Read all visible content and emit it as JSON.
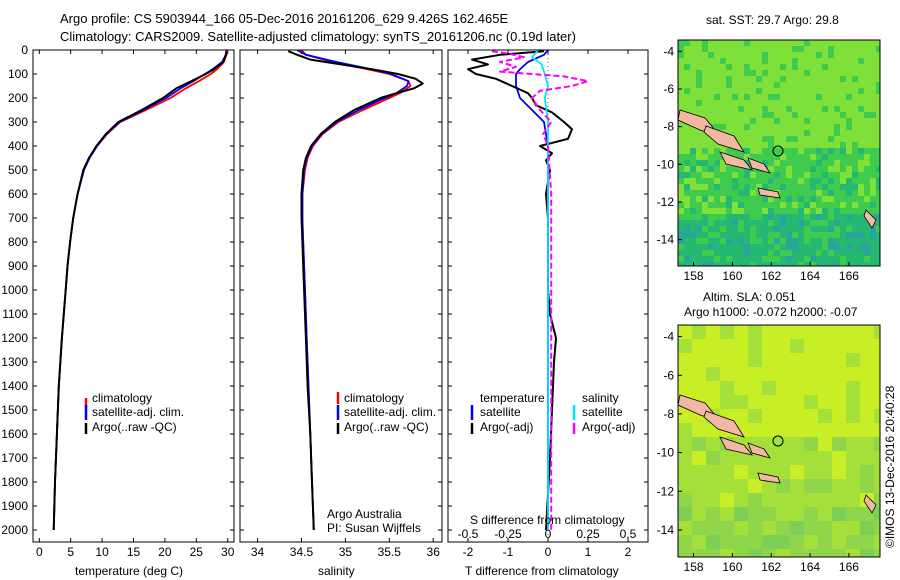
{
  "header": {
    "line1": "Argo profile: CS 5903944_166 05-Dec-2016 20161206_629 9.426S 162.465E",
    "line2": "Climatology: CARS2009. Satellite-adjusted climatology: synTS_20161206.nc (0.19d later)"
  },
  "depth_ticks": [
    0,
    100,
    200,
    300,
    400,
    500,
    600,
    700,
    800,
    900,
    1000,
    1100,
    1200,
    1300,
    1400,
    1500,
    1600,
    1700,
    1800,
    1900,
    2000
  ],
  "temp_panel": {
    "xlabel": "temperature (deg C)",
    "xticks": [
      0,
      5,
      10,
      15,
      20,
      25,
      30
    ],
    "legend": [
      "climatology",
      "satellite-adj. clim.",
      "Argo(..raw -QC)"
    ]
  },
  "sal_panel": {
    "xlabel": "salinity",
    "xticks": [
      "34",
      "34.5",
      "35",
      "35.5",
      "36"
    ],
    "legend": [
      "climatology",
      "satellite-adj. clim.",
      "Argo(..raw -QC)"
    ],
    "note1": "Argo Australia",
    "note2": "PI: Susan Wijffels"
  },
  "diff_panel": {
    "xlabel": "T difference from climatology",
    "top_label": "S difference from climatology",
    "t_ticks": [
      "-2",
      "-1",
      "0",
      "1",
      "2"
    ],
    "s_ticks": [
      "-0.5",
      "-0.25",
      "0",
      "0.25",
      "0.5"
    ],
    "legend_temp_title": "temperature",
    "legend_sal_title": "salinity",
    "legend_temp": [
      "satellite",
      "Argo(-adj)"
    ],
    "legend_sal": [
      "satellite",
      "Argo(-adj)"
    ]
  },
  "map_sst": {
    "title": "sat. SST: 29.7  Argo: 29.8",
    "yticks": [
      "-4",
      "-6",
      "-8",
      "-10",
      "-12",
      "-14"
    ],
    "xticks": [
      "158",
      "160",
      "162",
      "164",
      "166"
    ]
  },
  "map_sla": {
    "title1": "Altim. SLA: 0.051",
    "title2": "Argo h1000: -0.072 h2000: -0.07",
    "yticks": [
      "-4",
      "-6",
      "-8",
      "-10",
      "-12",
      "-14"
    ],
    "xticks": [
      "158",
      "160",
      "162",
      "164",
      "166"
    ]
  },
  "watermark": "©IMOS 13-Dec-2016 20:40:28",
  "colors": {
    "climatology": "#ff0000",
    "satellite": "#0000ff",
    "argo": "#000000",
    "sal_satellite": "#00e5ff",
    "sal_argo": "#ff00ff"
  },
  "chart_data": [
    {
      "type": "line",
      "xlabel": "temperature (deg C)",
      "ylabel": "",
      "xlim": [
        -1,
        31
      ],
      "ylim": [
        2050,
        0
      ],
      "series": [
        {
          "name": "climatology",
          "depth": [
            0,
            20,
            50,
            80,
            100,
            130,
            160,
            200,
            250,
            300,
            350,
            400,
            450,
            500,
            600,
            700,
            800,
            900,
            1000,
            1200,
            1400,
            1600,
            1800,
            2000
          ],
          "values": [
            29.9,
            29.8,
            29.4,
            28.3,
            27.3,
            25.4,
            23.3,
            20.9,
            17.0,
            12.9,
            10.8,
            9.2,
            8.0,
            7.1,
            6.1,
            5.4,
            4.9,
            4.5,
            4.2,
            3.6,
            3.1,
            2.8,
            2.5,
            2.3
          ]
        },
        {
          "name": "satellite-adj. clim.",
          "depth": [
            0,
            20,
            50,
            80,
            100,
            130,
            160,
            200,
            250,
            300,
            350,
            400,
            450,
            500,
            600,
            700,
            800,
            900,
            1000,
            1200,
            1400,
            1600,
            1800,
            2000
          ],
          "values": [
            29.8,
            29.7,
            29.1,
            27.6,
            26.4,
            24.5,
            22.5,
            20.2,
            16.6,
            12.8,
            10.7,
            9.2,
            8.0,
            7.1,
            6.1,
            5.4,
            4.9,
            4.5,
            4.2,
            3.6,
            3.1,
            2.8,
            2.5,
            2.3
          ]
        },
        {
          "name": "Argo(..raw -QC)",
          "depth": [
            5,
            20,
            50,
            80,
            100,
            130,
            160,
            200,
            250,
            300,
            350,
            400,
            450,
            500,
            600,
            700,
            800,
            900,
            1000,
            1200,
            1400,
            1600,
            1800,
            2000
          ],
          "values": [
            29.8,
            29.7,
            29.3,
            27.8,
            26.5,
            24.2,
            21.8,
            19.7,
            16.3,
            12.6,
            10.6,
            9.1,
            7.9,
            7.0,
            6.1,
            5.4,
            4.9,
            4.5,
            4.2,
            3.6,
            3.1,
            2.8,
            2.5,
            2.3
          ]
        }
      ]
    },
    {
      "type": "line",
      "xlabel": "salinity",
      "ylabel": "",
      "xlim": [
        33.8,
        36.1
      ],
      "ylim": [
        2050,
        0
      ],
      "series": [
        {
          "name": "climatology",
          "depth": [
            0,
            20,
            50,
            80,
            100,
            130,
            150,
            180,
            200,
            250,
            300,
            350,
            400,
            450,
            500,
            600,
            700,
            800,
            900,
            1000,
            1200,
            1400,
            1600,
            1800,
            2000
          ],
          "values": [
            34.5,
            34.55,
            34.85,
            35.25,
            35.5,
            35.72,
            35.74,
            35.62,
            35.5,
            35.2,
            34.92,
            34.74,
            34.63,
            34.57,
            34.54,
            34.51,
            34.51,
            34.52,
            34.53,
            34.54,
            34.56,
            34.58,
            34.6,
            34.62,
            34.64
          ]
        },
        {
          "name": "satellite-adj. clim.",
          "depth": [
            0,
            20,
            50,
            80,
            100,
            130,
            150,
            180,
            200,
            250,
            300,
            350,
            400,
            450,
            500,
            600,
            700,
            800,
            900,
            1000,
            1200,
            1400,
            1600,
            1800,
            2000
          ],
          "values": [
            34.45,
            34.55,
            34.9,
            35.3,
            35.52,
            35.72,
            35.7,
            35.58,
            35.45,
            35.15,
            34.9,
            34.73,
            34.62,
            34.56,
            34.53,
            34.51,
            34.51,
            34.52,
            34.53,
            34.54,
            34.56,
            34.58,
            34.6,
            34.62,
            34.64
          ]
        },
        {
          "name": "Argo(..raw -QC)",
          "depth": [
            5,
            20,
            40,
            60,
            80,
            100,
            120,
            140,
            160,
            180,
            200,
            250,
            300,
            350,
            400,
            450,
            500,
            600,
            700,
            800,
            900,
            1000,
            1200,
            1400,
            1600,
            1800,
            2000
          ],
          "values": [
            34.35,
            34.45,
            34.6,
            34.95,
            35.3,
            35.6,
            35.8,
            35.88,
            35.78,
            35.58,
            35.4,
            35.1,
            34.88,
            34.72,
            34.61,
            34.55,
            34.52,
            34.5,
            34.5,
            34.51,
            34.52,
            34.53,
            34.55,
            34.57,
            34.6,
            34.62,
            34.64
          ]
        }
      ]
    },
    {
      "type": "line",
      "xlabel": "T difference from climatology",
      "ylabel": "",
      "xlim": [
        -2.5,
        2.5
      ],
      "ylim": [
        2050,
        0
      ],
      "series": [
        {
          "name": "temperature satellite",
          "depth": [
            0,
            20,
            50,
            80,
            100,
            150,
            200,
            250,
            300,
            400,
            500,
            600,
            800,
            1000,
            1400,
            2000
          ],
          "values": [
            0,
            -0.1,
            -0.5,
            -0.7,
            -0.8,
            -0.8,
            -0.7,
            -0.4,
            -0.1,
            0,
            0,
            0,
            0,
            0,
            0,
            0
          ]
        },
        {
          "name": "temperature Argo(-adj)",
          "depth": [
            5,
            20,
            40,
            60,
            80,
            100,
            120,
            150,
            180,
            200,
            230,
            260,
            300,
            330,
            370,
            400,
            430,
            460,
            500,
            550,
            600,
            700,
            800,
            900,
            1000,
            1100,
            1200,
            1300,
            1500,
            1700,
            1850,
            2000
          ],
          "values": [
            -0.1,
            -1.2,
            -1.9,
            -1.5,
            -2.0,
            -1.8,
            -1.3,
            -0.9,
            -0.5,
            -0.4,
            -0.3,
            0.1,
            0.4,
            0.6,
            0.5,
            -0.2,
            0.1,
            -0.05,
            0.05,
            0,
            -0.05,
            0,
            0,
            0,
            0,
            0.05,
            0.2,
            0.15,
            0.1,
            0.05,
            0,
            -0.05
          ]
        },
        {
          "name": "salinity satellite",
          "depth": [
            0,
            30,
            60,
            100,
            150,
            200,
            300,
            400,
            600,
            1000,
            2000
          ],
          "values": [
            -0.06,
            -0.1,
            -0.04,
            -0.02,
            0,
            -0.02,
            0,
            0,
            0,
            0,
            0
          ]
        },
        {
          "name": "salinity Argo(-adj)",
          "depth": [
            5,
            15,
            30,
            50,
            70,
            90,
            110,
            130,
            150,
            170,
            200,
            250,
            300,
            350,
            400,
            500,
            600,
            800,
            1000,
            1400,
            2000
          ],
          "values": [
            -0.35,
            -0.25,
            -0.15,
            -0.3,
            -0.2,
            -0.3,
            0.1,
            0.25,
            0.15,
            -0.05,
            -0.1,
            -0.05,
            0.02,
            -0.03,
            0,
            0.01,
            0.02,
            0.02,
            0.02,
            0.02,
            0.02
          ]
        }
      ]
    }
  ]
}
